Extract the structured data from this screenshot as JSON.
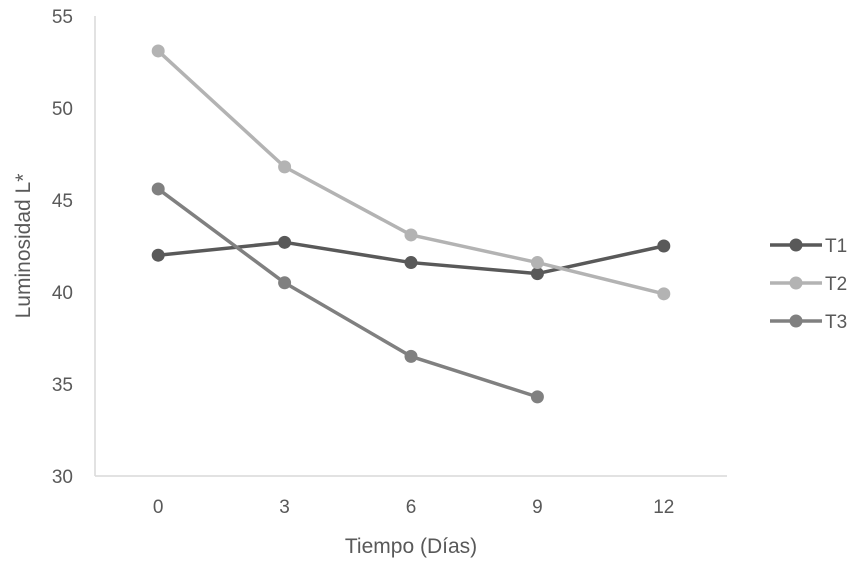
{
  "chart_data": {
    "type": "line",
    "title": "",
    "xlabel": "Tiempo (Días)",
    "ylabel": "Luminosidad  L*",
    "x": [
      0,
      3,
      6,
      9,
      12
    ],
    "x_tick_labels": [
      "0",
      "3",
      "6",
      "9",
      "12"
    ],
    "ylim": [
      30,
      55
    ],
    "y_ticks": [
      30,
      35,
      40,
      45,
      50,
      55
    ],
    "y_tick_labels": [
      "30",
      "35",
      "40",
      "45",
      "50",
      "55"
    ],
    "grid": false,
    "legend_position": "right",
    "series": [
      {
        "name": "T1",
        "color": "#595959",
        "values": [
          42.0,
          42.7,
          41.6,
          41.0,
          42.5
        ]
      },
      {
        "name": "T2",
        "color": "#b3b3b3",
        "values": [
          53.1,
          46.8,
          43.1,
          41.6,
          39.9
        ]
      },
      {
        "name": "T3",
        "color": "#808080",
        "values": [
          45.6,
          40.5,
          36.5,
          34.3,
          null
        ]
      }
    ]
  }
}
